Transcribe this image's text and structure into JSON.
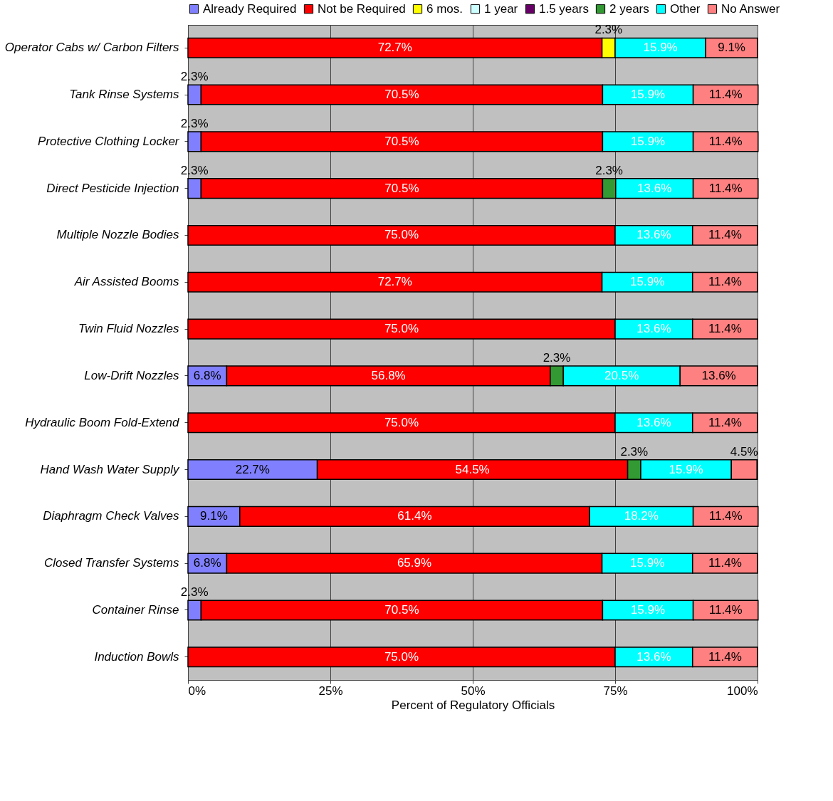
{
  "chart_data": {
    "type": "bar",
    "orientation": "horizontal",
    "stacked": true,
    "categories": [
      "Operator Cabs w/ Carbon Filters",
      "Tank Rinse Systems",
      "Protective Clothing Locker",
      "Direct Pesticide Injection",
      "Multiple Nozzle Bodies",
      "Air Assisted Booms",
      "Twin Fluid Nozzles",
      "Low-Drift Nozzles",
      "Hydraulic Boom Fold-Extend",
      "Hand Wash Water Supply",
      "Diaphragm Check Valves",
      "Closed Transfer Systems",
      "Container Rinse",
      "Induction Bowls"
    ],
    "series": [
      {
        "name": "Already Required",
        "color": "#8080ff",
        "values": [
          null,
          2.3,
          2.3,
          2.3,
          null,
          null,
          null,
          6.8,
          null,
          22.7,
          9.1,
          6.8,
          2.3,
          null
        ],
        "value_labels": [
          null,
          "2.3%",
          "2.3%",
          "2.3%",
          null,
          null,
          null,
          "6.8%",
          null,
          "22.7%",
          "9.1%",
          "6.8%",
          "2.3%",
          null
        ]
      },
      {
        "name": "Not be Required",
        "color": "#ff0000",
        "values": [
          72.7,
          70.5,
          70.5,
          70.5,
          75.0,
          72.7,
          75.0,
          56.8,
          75.0,
          54.5,
          61.4,
          65.9,
          70.5,
          75.0
        ],
        "value_labels": [
          "72.7%",
          "70.5%",
          "70.5%",
          "70.5%",
          "75.0%",
          "72.7%",
          "75.0%",
          "56.8%",
          "75.0%",
          "54.5%",
          "61.4%",
          "65.9%",
          "70.5%",
          "75.0%"
        ]
      },
      {
        "name": "6 mos.",
        "color": "#ffff00",
        "values": [
          2.3,
          null,
          null,
          null,
          null,
          null,
          null,
          null,
          null,
          null,
          null,
          null,
          null,
          null
        ],
        "value_labels": [
          "2.3%",
          null,
          null,
          null,
          null,
          null,
          null,
          null,
          null,
          null,
          null,
          null,
          null,
          null
        ]
      },
      {
        "name": "1 year",
        "color": "#ccffff",
        "values": [
          null,
          null,
          null,
          null,
          null,
          null,
          null,
          null,
          null,
          null,
          null,
          null,
          null,
          null
        ]
      },
      {
        "name": "1.5 years",
        "color": "#660066",
        "values": [
          null,
          null,
          null,
          null,
          null,
          null,
          null,
          null,
          null,
          null,
          null,
          null,
          null,
          null
        ]
      },
      {
        "name": "2 years",
        "color": "#339933",
        "values": [
          null,
          null,
          null,
          2.3,
          null,
          null,
          null,
          2.3,
          null,
          2.3,
          null,
          null,
          null,
          null
        ],
        "value_labels": [
          null,
          null,
          null,
          "2.3%",
          null,
          null,
          null,
          "2.3%",
          null,
          "2.3%",
          null,
          null,
          null,
          null
        ]
      },
      {
        "name": "Other",
        "color": "#00ffff",
        "values": [
          15.9,
          15.9,
          15.9,
          13.6,
          13.6,
          15.9,
          13.6,
          20.5,
          13.6,
          15.9,
          18.2,
          15.9,
          15.9,
          13.6
        ],
        "value_labels": [
          "15.9%",
          "15.9%",
          "15.9%",
          "13.6%",
          "13.6%",
          "15.9%",
          "13.6%",
          "20.5%",
          "13.6%",
          "15.9%",
          "18.2%",
          "15.9%",
          "15.9%",
          "13.6%"
        ]
      },
      {
        "name": "No Answer",
        "color": "#ff8080",
        "values": [
          9.1,
          11.4,
          11.4,
          11.4,
          11.4,
          11.4,
          11.4,
          13.6,
          11.4,
          4.5,
          11.4,
          11.4,
          11.4,
          11.4
        ],
        "value_labels": [
          "9.1%",
          "11.4%",
          "11.4%",
          "11.4%",
          "11.4%",
          "11.4%",
          "11.4%",
          "13.6%",
          "11.4%",
          "4.5%",
          "11.4%",
          "11.4%",
          "11.4%",
          "11.4%"
        ]
      }
    ],
    "xlim": [
      0,
      100
    ],
    "xticks": [
      {
        "value": 0,
        "label": "0%"
      },
      {
        "value": 25,
        "label": "25%"
      },
      {
        "value": 50,
        "label": "50%"
      },
      {
        "value": 75,
        "label": "75%"
      },
      {
        "value": 100,
        "label": "100%"
      }
    ],
    "xlabel": "Percent of Regulatory Officials",
    "grid": "x",
    "legend": "top"
  }
}
